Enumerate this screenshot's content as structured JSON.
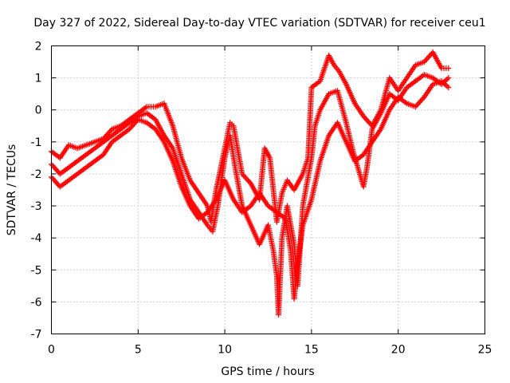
{
  "chart_data": {
    "type": "scatter",
    "title": "Day 327 of 2022, Sidereal Day-to-day VTEC variation (SDTVAR) for receiver ceu1",
    "xlabel": "GPS time / hours",
    "ylabel": "SDTVAR / TECUs",
    "xlim": [
      0,
      25
    ],
    "ylim": [
      -7,
      2
    ],
    "xticks": [
      0,
      5,
      10,
      15,
      20,
      25
    ],
    "yticks": [
      -7,
      -6,
      -5,
      -4,
      -3,
      -2,
      -1,
      0,
      1,
      2
    ],
    "xtick_labels": [
      "0",
      "5",
      "10",
      "15",
      "20",
      "25"
    ],
    "ytick_labels": [
      "-7",
      "-6",
      "-5",
      "-4",
      "-3",
      "-2",
      "-1",
      "0",
      "1",
      "2"
    ],
    "grid": true,
    "legend": "none",
    "marker": "plus",
    "color": "#ff0000",
    "series": [
      {
        "x": [
          0,
          0.5,
          1,
          1.5,
          2,
          2.5,
          3,
          3.5,
          4,
          4.5,
          5,
          5.5,
          6,
          6.5,
          7,
          7.5,
          8,
          8.5,
          9,
          9.2,
          9.5,
          10,
          10.3,
          10.5,
          11,
          11.5,
          12,
          12.3,
          12.6,
          13,
          13.3,
          13.6,
          14,
          14.5,
          14.8,
          15,
          15.5,
          16,
          16.3,
          16.6,
          17,
          17.5,
          18,
          18.5,
          19,
          19.5,
          20,
          20.5,
          21,
          21.5,
          22,
          22.5,
          22.9
        ],
        "y": [
          -1.3,
          -1.5,
          -1.1,
          -1.2,
          -1.1,
          -1.0,
          -0.9,
          -0.6,
          -0.5,
          -0.3,
          -0.1,
          0.1,
          0.1,
          0.2,
          -0.5,
          -1.5,
          -2.2,
          -2.6,
          -3.0,
          -3.5,
          -2.5,
          -1.2,
          -0.4,
          -0.5,
          -2.0,
          -2.3,
          -2.8,
          -1.2,
          -1.5,
          -3.5,
          -2.6,
          -2.2,
          -2.5,
          -2.0,
          -1.5,
          0.7,
          0.9,
          1.7,
          1.4,
          1.2,
          0.8,
          0.2,
          -0.2,
          -0.5,
          0.0,
          1.0,
          0.6,
          1.0,
          1.4,
          1.5,
          1.8,
          1.3,
          1.3
        ]
      },
      {
        "x": [
          0,
          0.5,
          1,
          1.5,
          2,
          2.5,
          3,
          3.5,
          4,
          4.5,
          5,
          5.5,
          6,
          6.5,
          7,
          7.5,
          8,
          8.5,
          9,
          9.3,
          9.6,
          10,
          10.3,
          10.6,
          11,
          11.5,
          12,
          12.5,
          12.8,
          13,
          13.1,
          13.3,
          13.6,
          14,
          14.2,
          14.5,
          15,
          15.2,
          15.5,
          16,
          16.5,
          17,
          17.4,
          18,
          18.2,
          18.5,
          19,
          19.5,
          20,
          20.5,
          21,
          21.5,
          22,
          22.5,
          22.9
        ],
        "y": [
          -1.7,
          -2.0,
          -1.8,
          -1.6,
          -1.4,
          -1.2,
          -1.0,
          -0.8,
          -0.6,
          -0.4,
          -0.2,
          -0.1,
          -0.3,
          -0.8,
          -1.2,
          -2.0,
          -2.8,
          -3.2,
          -3.6,
          -3.8,
          -3.0,
          -1.5,
          -0.8,
          -1.8,
          -3.0,
          -3.6,
          -4.2,
          -3.6,
          -4.4,
          -5.2,
          -6.4,
          -4.0,
          -3.0,
          -4.2,
          -5.5,
          -3.0,
          -1.5,
          -0.5,
          0.0,
          0.5,
          0.6,
          -0.4,
          -1.3,
          -2.4,
          -1.8,
          -0.6,
          -0.1,
          0.5,
          0.3,
          0.7,
          0.9,
          1.1,
          1.0,
          0.8,
          1.0
        ]
      },
      {
        "x": [
          0,
          0.5,
          1,
          1.5,
          2,
          2.5,
          3,
          3.5,
          4,
          4.5,
          5,
          5.5,
          6,
          6.5,
          7,
          7.5,
          8,
          8.5,
          9,
          9.5,
          10,
          10.5,
          11,
          11.5,
          12,
          12.5,
          13,
          13.5,
          13.8,
          14,
          14.2,
          14.5,
          15,
          15.5,
          16,
          16.5,
          17,
          17.5,
          18,
          18.5,
          19,
          19.5,
          20,
          20.5,
          21,
          21.5,
          22,
          22.5,
          22.9
        ],
        "y": [
          -2.1,
          -2.4,
          -2.2,
          -2.0,
          -1.8,
          -1.6,
          -1.4,
          -1.0,
          -0.8,
          -0.6,
          -0.3,
          -0.4,
          -0.6,
          -1.0,
          -1.6,
          -2.4,
          -3.0,
          -3.4,
          -3.2,
          -2.8,
          -2.2,
          -2.8,
          -3.2,
          -3.0,
          -2.6,
          -3.0,
          -3.2,
          -3.4,
          -4.4,
          -5.9,
          -4.8,
          -3.6,
          -2.8,
          -1.6,
          -0.8,
          -0.4,
          -1.0,
          -1.6,
          -1.4,
          -1.0,
          -0.6,
          0.0,
          0.4,
          0.2,
          0.1,
          0.4,
          0.8,
          0.9,
          0.7
        ]
      }
    ]
  }
}
